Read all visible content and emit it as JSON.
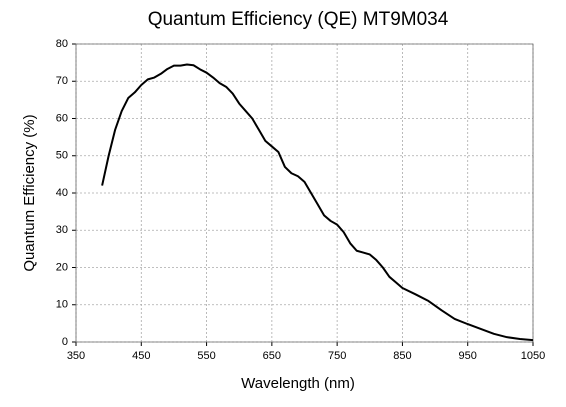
{
  "chart_data": {
    "type": "line",
    "title": "Quantum Efficiency (QE) MT9M034",
    "xlabel": "Wavelength (nm)",
    "ylabel": "Quantum Efficiency (%)",
    "x": [
      390,
      400,
      410,
      420,
      430,
      440,
      450,
      460,
      470,
      480,
      490,
      500,
      510,
      520,
      530,
      540,
      550,
      560,
      570,
      580,
      590,
      600,
      610,
      620,
      630,
      640,
      650,
      660,
      670,
      680,
      690,
      700,
      710,
      720,
      730,
      740,
      750,
      760,
      770,
      780,
      790,
      800,
      810,
      820,
      830,
      840,
      850,
      870,
      890,
      910,
      930,
      950,
      970,
      990,
      1010,
      1030,
      1050
    ],
    "series": [
      {
        "name": "QE",
        "color": "#000000",
        "values": [
          42,
          50,
          57,
          62,
          65.5,
          67,
          69,
          70.5,
          71,
          72,
          73.3,
          74.2,
          74.2,
          74.5,
          74.3,
          73.2,
          72.3,
          71,
          69.5,
          68.5,
          66.7,
          64,
          62,
          60,
          57,
          54,
          52.5,
          51,
          47,
          45.3,
          44.5,
          43,
          40,
          37,
          34,
          32.5,
          31.5,
          29.5,
          26.5,
          24.5,
          24,
          23.5,
          22,
          20,
          17.5,
          16,
          14.5,
          12.8,
          11,
          8.5,
          6.2,
          4.8,
          3.5,
          2.2,
          1.3,
          0.8,
          0.5
        ]
      }
    ],
    "xlim": [
      350,
      1050
    ],
    "xticks": [
      350,
      450,
      550,
      650,
      750,
      850,
      950,
      1050
    ],
    "ylim": [
      0,
      80
    ],
    "yticks": [
      0,
      10,
      20,
      30,
      40,
      50,
      60,
      70,
      80
    ],
    "grid": true
  }
}
